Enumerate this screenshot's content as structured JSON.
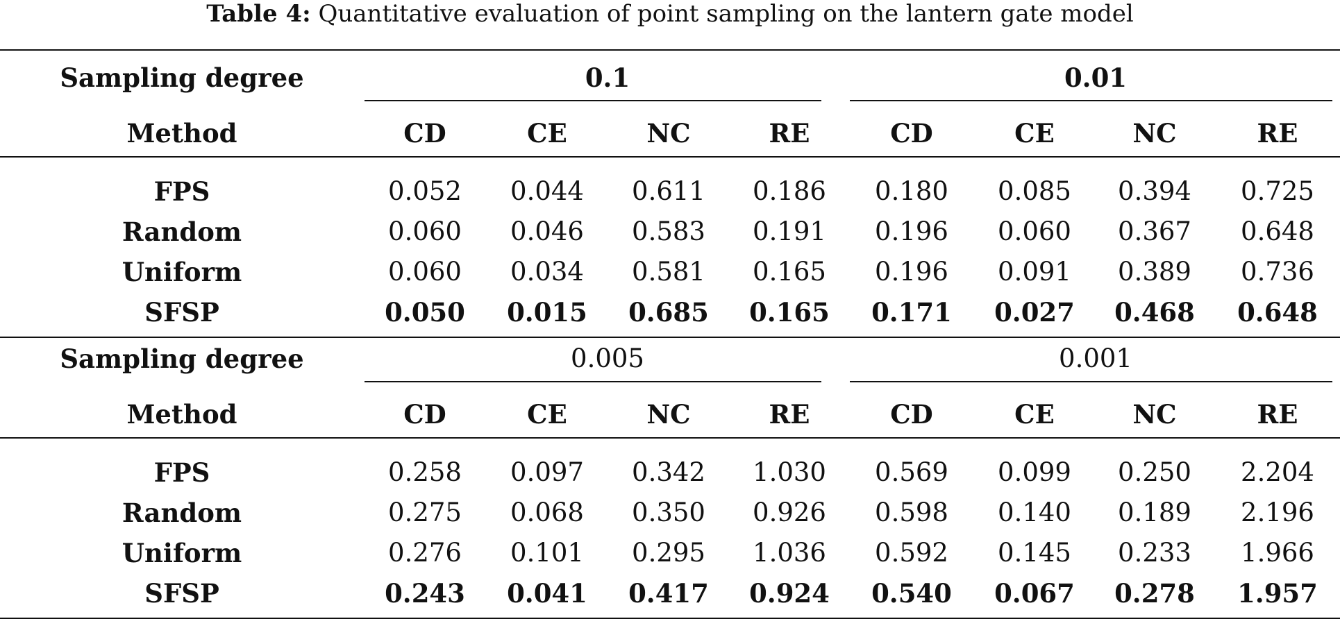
{
  "caption": {
    "label": "Table 4:",
    "text": "Quantitative evaluation of point sampling on the lantern gate model"
  },
  "table": {
    "group_header_label": "Sampling degree",
    "method_header_label": "Method",
    "metrics": [
      "CD",
      "CE",
      "NC",
      "RE"
    ],
    "blocks": [
      {
        "degrees": [
          "0.1",
          "0.01"
        ],
        "degrees_bold": true,
        "rows": [
          {
            "method": "FPS",
            "values": [
              "0.052",
              "0.044",
              "0.611",
              "0.186",
              "0.180",
              "0.085",
              "0.394",
              "0.725"
            ],
            "bold": false
          },
          {
            "method": "Random",
            "values": [
              "0.060",
              "0.046",
              "0.583",
              "0.191",
              "0.196",
              "0.060",
              "0.367",
              "0.648"
            ],
            "bold": false
          },
          {
            "method": "Uniform",
            "values": [
              "0.060",
              "0.034",
              "0.581",
              "0.165",
              "0.196",
              "0.091",
              "0.389",
              "0.736"
            ],
            "bold": false
          },
          {
            "method": "SFSP",
            "values": [
              "0.050",
              "0.015",
              "0.685",
              "0.165",
              "0.171",
              "0.027",
              "0.468",
              "0.648"
            ],
            "bold": true
          }
        ]
      },
      {
        "degrees": [
          "0.005",
          "0.001"
        ],
        "degrees_bold": false,
        "rows": [
          {
            "method": "FPS",
            "values": [
              "0.258",
              "0.097",
              "0.342",
              "1.030",
              "0.569",
              "0.099",
              "0.250",
              "2.204"
            ],
            "bold": false
          },
          {
            "method": "Random",
            "values": [
              "0.275",
              "0.068",
              "0.350",
              "0.926",
              "0.598",
              "0.140",
              "0.189",
              "2.196"
            ],
            "bold": false
          },
          {
            "method": "Uniform",
            "values": [
              "0.276",
              "0.101",
              "0.295",
              "1.036",
              "0.592",
              "0.145",
              "0.233",
              "1.966"
            ],
            "bold": false
          },
          {
            "method": "SFSP",
            "values": [
              "0.243",
              "0.041",
              "0.417",
              "0.924",
              "0.540",
              "0.067",
              "0.278",
              "1.957"
            ],
            "bold": true
          }
        ]
      }
    ]
  }
}
